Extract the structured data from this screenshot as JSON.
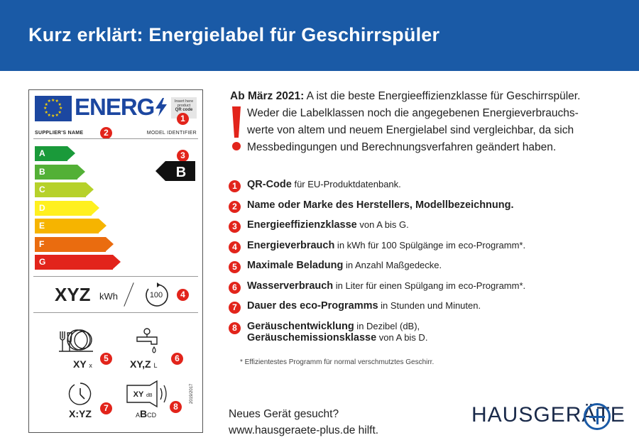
{
  "header": {
    "title": "Kurz erklärt: Energielabel für Geschirrspüler"
  },
  "label": {
    "energy_word": "ENERG",
    "qr_line1": "Insert here",
    "qr_line2": "product",
    "qr_line3": "QR code",
    "supplier": "SUPPLIER'S NAME",
    "model": "MODEL IDENTIFIER",
    "classes": [
      {
        "letter": "A",
        "color": "#1a9a3a"
      },
      {
        "letter": "B",
        "color": "#53b036"
      },
      {
        "letter": "C",
        "color": "#b6d12a"
      },
      {
        "letter": "D",
        "color": "#fff01f"
      },
      {
        "letter": "E",
        "color": "#f6b400"
      },
      {
        "letter": "F",
        "color": "#ea6c0f"
      },
      {
        "letter": "G",
        "color": "#e2241b"
      }
    ],
    "current_class": "B",
    "energy_value": "XYZ",
    "energy_unit": "kWh",
    "cycles": "100",
    "place_settings": "XY",
    "place_settings_unit": "x",
    "water": "XY,Z",
    "water_unit": "L",
    "duration": "X:YZ",
    "noise_value": "XY",
    "noise_unit": "dB",
    "noise_classes": {
      "a": "A",
      "b": "B",
      "c": "CD"
    },
    "regulation": "2019/2017"
  },
  "intro": {
    "bold": "Ab März 2021:",
    "line1": " A ist die beste Energieeffizienzklasse für Geschirrspüler.",
    "line2": "Weder die Labelklassen noch die angegebenen Energieverbrauchs-",
    "line3": "werte von altem und neuem Energielabel sind vergleichbar, da sich",
    "line4": "Messbedingungen und Berechnungsverfahren geändert haben."
  },
  "items": [
    {
      "num": "1",
      "bold": "QR-Code",
      "rest": " für EU-Produktdatenbank."
    },
    {
      "num": "2",
      "bold": "Name oder Marke des Herstellers, Modellbezeichnung.",
      "rest": ""
    },
    {
      "num": "3",
      "bold": "Energieeffizienzklasse",
      "rest": " von A bis G."
    },
    {
      "num": "4",
      "bold": "Energieverbrauch",
      "rest": " in kWh für 100 Spülgänge im eco-Programm*."
    },
    {
      "num": "5",
      "bold": "Maximale Beladung",
      "rest": " in Anzahl Maßgedecke."
    },
    {
      "num": "6",
      "bold": "Wasserverbrauch",
      "rest": " in Liter für einen Spülgang im eco-Programm*."
    },
    {
      "num": "7",
      "bold": "Dauer des eco-Programms",
      "rest": " in Stunden und Minuten."
    },
    {
      "num": "8",
      "bold": "Geräuschentwicklung",
      "rest": " in Dezibel (dB),",
      "bold2": "Geräuschemissionsklasse",
      "rest2": " von A bis D."
    }
  ],
  "footnote": "* Effizientestes Programm für normal verschmutztes Geschirr.",
  "bottom": {
    "line1": "Neues Gerät gesucht?",
    "line2": "www.hausgeraete-plus.de hilft."
  },
  "logo": {
    "text": "HAUSGERÄTE"
  },
  "colors": {
    "header": "#1a5aa6",
    "badge": "#e2241b",
    "eu_blue": "#1c47a0"
  }
}
